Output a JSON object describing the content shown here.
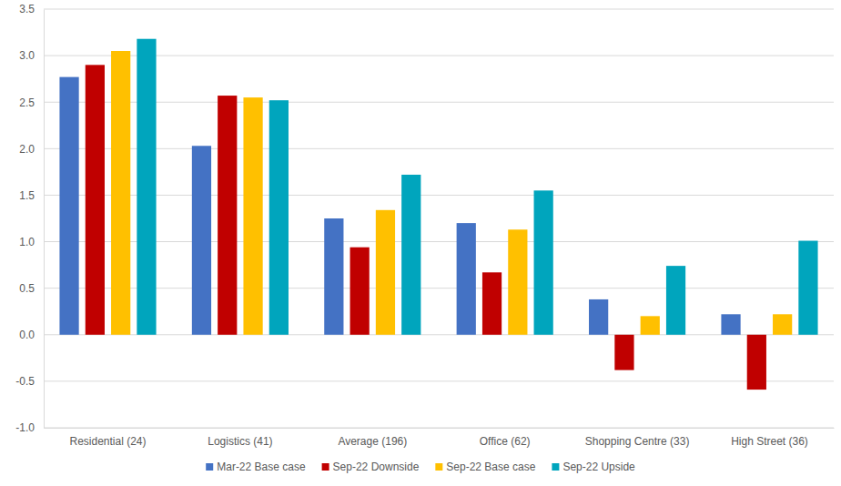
{
  "chart_data": {
    "type": "bar",
    "categories": [
      "Residential (24)",
      "Logistics (41)",
      "Average (196)",
      "Office (62)",
      "Shopping Centre (33)",
      "High Street (36)"
    ],
    "series": [
      {
        "name": "Mar-22 Base case",
        "color": "#4472c4",
        "values": [
          2.77,
          2.03,
          1.25,
          1.2,
          0.38,
          0.22
        ]
      },
      {
        "name": "Sep-22 Downside",
        "color": "#c00000",
        "values": [
          2.9,
          2.57,
          0.94,
          0.67,
          -0.38,
          -0.59
        ]
      },
      {
        "name": "Sep-22 Base case",
        "color": "#ffc000",
        "values": [
          3.05,
          2.55,
          1.34,
          1.13,
          0.2,
          0.22
        ]
      },
      {
        "name": "Sep-22 Upside",
        "color": "#00a5bd",
        "values": [
          3.18,
          2.52,
          1.72,
          1.55,
          0.74,
          1.01
        ]
      }
    ],
    "ylim": [
      -1,
      3.5
    ],
    "yticks": [
      {
        "value": -1,
        "label": "-1.0"
      },
      -0.5,
      {
        "value": 0,
        "label": "0.0"
      },
      0.5,
      {
        "value": 1,
        "label": "1.0"
      },
      1.5,
      {
        "value": 2,
        "label": "2.0"
      },
      2.5,
      {
        "value": 3,
        "label": "3.0"
      },
      3.5
    ],
    "grid": true,
    "legend": "bottom"
  }
}
